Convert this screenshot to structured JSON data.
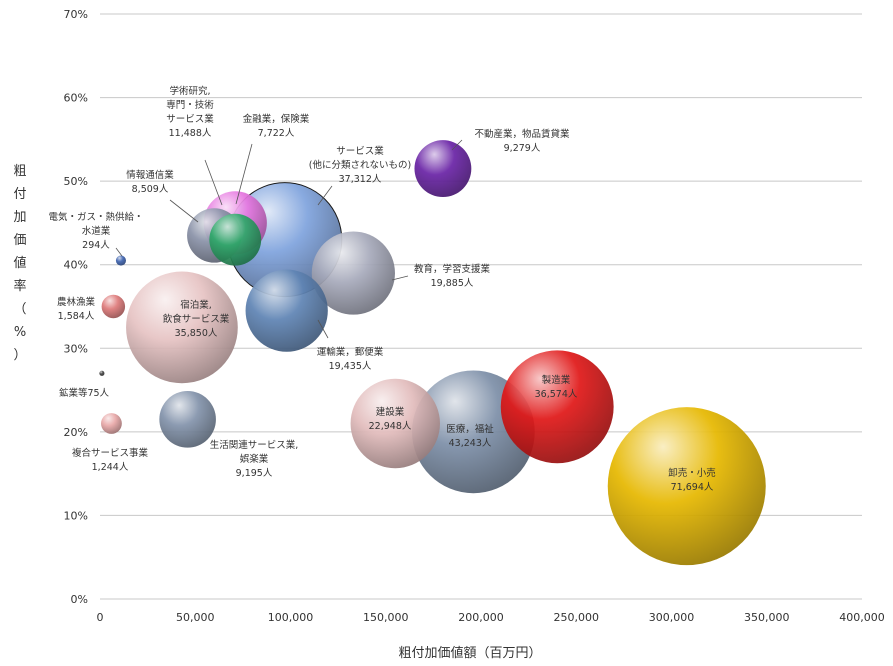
{
  "chart_data": {
    "type": "bubble",
    "title": "",
    "xlabel": "粗付加価値額（百万円）",
    "ylabel": "粗付加価値率（%）",
    "xlim": [
      0,
      400000
    ],
    "ylim": [
      0,
      70
    ],
    "grid": "horizontal",
    "x_ticks": [
      0,
      50000,
      100000,
      150000,
      200000,
      250000,
      300000,
      350000,
      400000
    ],
    "x_tick_labels": [
      "0",
      "50,000",
      "100,000",
      "150,000",
      "200,000",
      "250,000",
      "300,000",
      "350,000",
      "400,000"
    ],
    "y_ticks": [
      0,
      10,
      20,
      30,
      40,
      50,
      60,
      70
    ],
    "y_tick_labels": [
      "0%",
      "10%",
      "20%",
      "30%",
      "40%",
      "50%",
      "60%",
      "70%"
    ],
    "points": [
      {
        "label": [
          "卸売・小売",
          "71,694人"
        ],
        "x": 308000,
        "y": 13.5,
        "size": 71694,
        "color": "#e6b800"
      },
      {
        "label": [
          "医療，福祉",
          "43,243人"
        ],
        "x": 196000,
        "y": 20.0,
        "size": 43243,
        "color": "#7d8fa8"
      },
      {
        "label": [
          "製造業",
          "36,574人"
        ],
        "x": 240000,
        "y": 23.0,
        "size": 36574,
        "color": "#e01818"
      },
      {
        "label": [
          "建設業",
          "22,948人"
        ],
        "x": 155000,
        "y": 21.0,
        "size": 22948,
        "color": "#e2bcbc"
      },
      {
        "label": [
          "生活関連サービス業,",
          "娯楽業",
          "9,195人"
        ],
        "x": 46000,
        "y": 21.5,
        "size": 9195,
        "color": "#8393ab"
      },
      {
        "label": [
          "運輸業，郵便業",
          "19,435人"
        ],
        "x": 98000,
        "y": 34.5,
        "size": 19435,
        "color": "#5f84b4"
      },
      {
        "label": [
          "教育，学習支援業",
          "19,885人"
        ],
        "x": 133000,
        "y": 39.0,
        "size": 19885,
        "color": "#a7aabb"
      },
      {
        "label": [
          "宿泊業,",
          "飲食サービス業",
          "35,850人"
        ],
        "x": 43000,
        "y": 32.5,
        "size": 35850,
        "color": "#e6c3c3"
      },
      {
        "label": [
          "サービス業",
          "(他に分類されないもの)",
          "37,312人"
        ],
        "x": 97000,
        "y": 43.0,
        "size": 37312,
        "color": "#7fa3dd"
      },
      {
        "label": [
          "金融業，保険業",
          "7,722人"
        ],
        "x": 71000,
        "y": 43.0,
        "size": 7722,
        "color": "#2fa86a"
      },
      {
        "label": [
          "学術研究,",
          "専門・技術",
          "サービス業",
          "11,488人"
        ],
        "x": 71000,
        "y": 45.0,
        "size": 11488,
        "color": "#e676e0"
      },
      {
        "label": [
          "情報通信業",
          "8,509人"
        ],
        "x": 60000,
        "y": 43.5,
        "size": 8509,
        "color": "#8a92a8"
      },
      {
        "label": [
          "不動産業，物品賃貸業",
          "9,279人"
        ],
        "x": 180000,
        "y": 51.5,
        "size": 9279,
        "color": "#6a24a6"
      },
      {
        "label": [
          "電気・ガス・熱供給・",
          "水道業",
          "294人"
        ],
        "x": 11000,
        "y": 40.5,
        "size": 294,
        "color": "#3f64b0"
      },
      {
        "label": [
          "農林漁業",
          "1,584人"
        ],
        "x": 7000,
        "y": 35.0,
        "size": 1584,
        "color": "#de7a7a"
      },
      {
        "label": [
          "鉱業等",
          "75人"
        ],
        "x": 1000,
        "y": 27.0,
        "size": 75,
        "color": "#444444"
      },
      {
        "label": [
          "複合サービス事業",
          "1,244人"
        ],
        "x": 6000,
        "y": 21.0,
        "size": 1244,
        "color": "#e8a8a8"
      }
    ]
  }
}
